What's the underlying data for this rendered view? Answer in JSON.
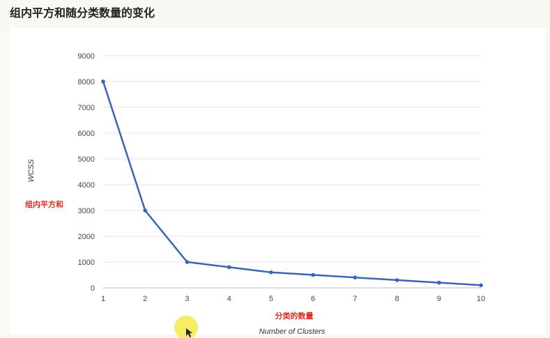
{
  "page": {
    "title": "组内平方和随分类数量的变化"
  },
  "colors": {
    "line": "#3c64b4",
    "grid": "#e3e3e3",
    "annotation": "#e0281e",
    "cursor_halo": "#f3ea4a"
  },
  "annotations": {
    "y_cn": "组内平方和",
    "x_cn": "分类的数量"
  },
  "chart_data": {
    "type": "line",
    "x": [
      1,
      2,
      3,
      4,
      5,
      6,
      7,
      8,
      9,
      10
    ],
    "series": [
      {
        "values": [
          8000,
          3000,
          1000,
          800,
          600,
          500,
          400,
          300,
          200,
          100
        ]
      }
    ],
    "xlabel": "Number of Clusters",
    "ylabel": "WCSS",
    "xlim": [
      1,
      10
    ],
    "ylim": [
      0,
      9000
    ],
    "y_ticks": [
      0,
      1000,
      2000,
      3000,
      4000,
      5000,
      6000,
      7000,
      8000,
      9000
    ],
    "x_ticks": [
      1,
      2,
      3,
      4,
      5,
      6,
      7,
      8,
      9,
      10
    ],
    "grid": true
  }
}
